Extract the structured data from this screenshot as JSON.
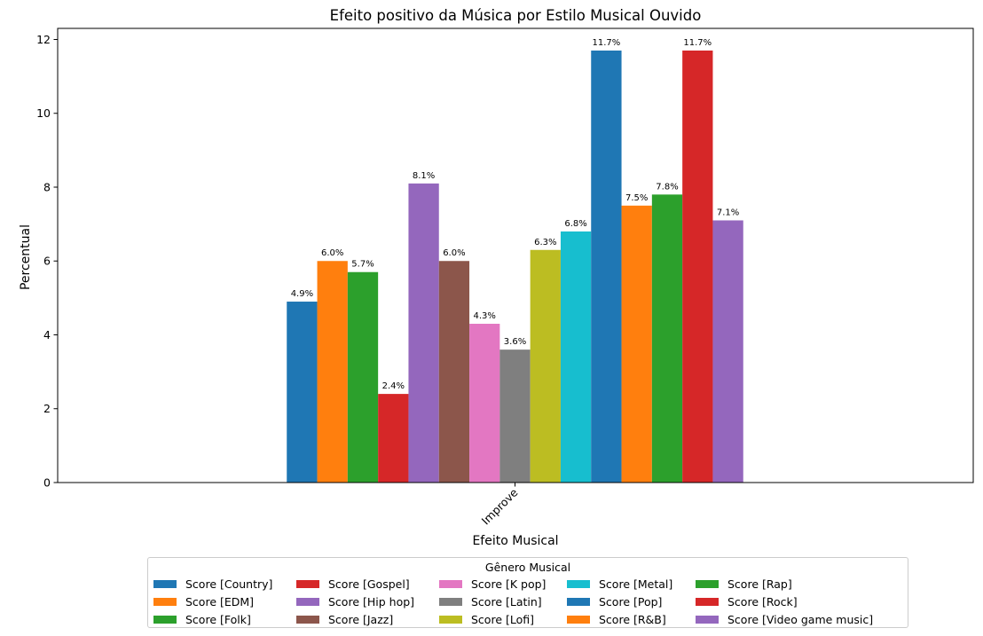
{
  "chart_data": {
    "type": "bar",
    "title": "Efeito positivo da Música por Estilo Musical Ouvido",
    "xlabel": "Efeito Musical",
    "ylabel": "Percentual",
    "categories": [
      "Improve"
    ],
    "ylim": [
      0,
      12.3
    ],
    "yticks": [
      0,
      2,
      4,
      6,
      8,
      10,
      12
    ],
    "grid": false,
    "legend": {
      "title": "Gênero Musical",
      "placement": "bottom-center",
      "columns": 5
    },
    "series": [
      {
        "name": "Score [Country]",
        "values": [
          4.9
        ],
        "label": "4.9%",
        "color": "#1f77b4"
      },
      {
        "name": "Score [EDM]",
        "values": [
          6.0
        ],
        "label": "6.0%",
        "color": "#ff7f0e"
      },
      {
        "name": "Score [Folk]",
        "values": [
          5.7
        ],
        "label": "5.7%",
        "color": "#2ca02c"
      },
      {
        "name": "Score [Gospel]",
        "values": [
          2.4
        ],
        "label": "2.4%",
        "color": "#d62728"
      },
      {
        "name": "Score [Hip hop]",
        "values": [
          8.1
        ],
        "label": "8.1%",
        "color": "#9467bd"
      },
      {
        "name": "Score [Jazz]",
        "values": [
          6.0
        ],
        "label": "6.0%",
        "color": "#8c564b"
      },
      {
        "name": "Score [K pop]",
        "values": [
          4.3
        ],
        "label": "4.3%",
        "color": "#e377c2"
      },
      {
        "name": "Score [Latin]",
        "values": [
          3.6
        ],
        "label": "3.6%",
        "color": "#7f7f7f"
      },
      {
        "name": "Score [Lofi]",
        "values": [
          6.3
        ],
        "label": "6.3%",
        "color": "#bcbd22"
      },
      {
        "name": "Score [Metal]",
        "values": [
          6.8
        ],
        "label": "6.8%",
        "color": "#17becf"
      },
      {
        "name": "Score [Pop]",
        "values": [
          11.7
        ],
        "label": "11.7%",
        "color": "#1f77b4"
      },
      {
        "name": "Score [R&B]",
        "values": [
          7.5
        ],
        "label": "7.5%",
        "color": "#ff7f0e"
      },
      {
        "name": "Score [Rap]",
        "values": [
          7.8
        ],
        "label": "7.8%",
        "color": "#2ca02c"
      },
      {
        "name": "Score [Rock]",
        "values": [
          11.7
        ],
        "label": "11.7%",
        "color": "#d62728"
      },
      {
        "name": "Score [Video game music]",
        "values": [
          7.1
        ],
        "label": "7.1%",
        "color": "#9467bd"
      }
    ]
  }
}
